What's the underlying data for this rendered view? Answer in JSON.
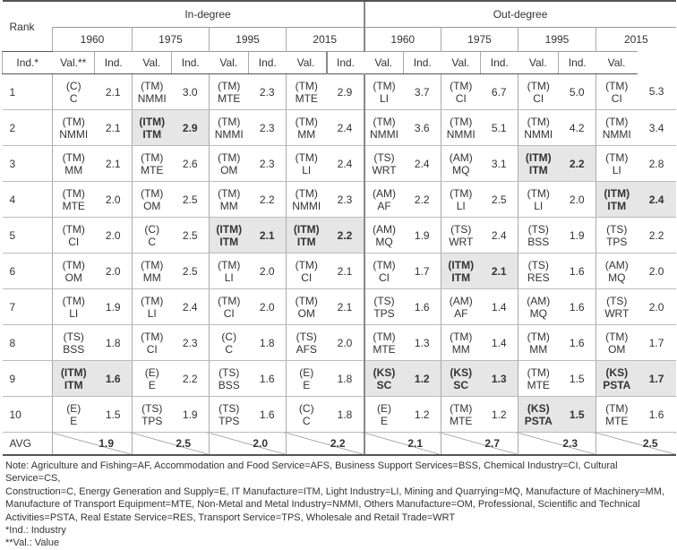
{
  "header": {
    "rank": "Rank",
    "in_degree": "In-degree",
    "out_degree": "Out-degree",
    "years": [
      "1960",
      "1975",
      "1995",
      "2015",
      "1960",
      "1975",
      "1995",
      "2015"
    ],
    "sub": [
      "Ind.*",
      "Val.**",
      "Ind.",
      "Val.",
      "Ind.",
      "Val.",
      "Ind.",
      "Val.",
      "Ind.",
      "Val.",
      "Ind.",
      "Val.",
      "Ind.",
      "Val.",
      "Ind.",
      "Val."
    ]
  },
  "rows": [
    {
      "rank": "1",
      "cells": [
        {
          "c": "(C)",
          "a": "C",
          "v": "2.1"
        },
        {
          "c": "(TM)",
          "a": "NMMI",
          "v": "3.0"
        },
        {
          "c": "(TM)",
          "a": "MTE",
          "v": "2.3"
        },
        {
          "c": "(TM)",
          "a": "MTE",
          "v": "2.9"
        },
        {
          "c": "(TM)",
          "a": "LI",
          "v": "3.7"
        },
        {
          "c": "(TM)",
          "a": "CI",
          "v": "6.7"
        },
        {
          "c": "(TM)",
          "a": "CI",
          "v": "5.0"
        },
        {
          "c": "(TM)",
          "a": "CI",
          "v": "5.3"
        }
      ]
    },
    {
      "rank": "2",
      "cells": [
        {
          "c": "(TM)",
          "a": "NMMI",
          "v": "2.1"
        },
        {
          "c": "(ITM)",
          "a": "ITM",
          "v": "2.9",
          "hl": true
        },
        {
          "c": "(TM)",
          "a": "NMMI",
          "v": "2.3"
        },
        {
          "c": "(TM)",
          "a": "MM",
          "v": "2.4"
        },
        {
          "c": "(TM)",
          "a": "NMMI",
          "v": "3.6"
        },
        {
          "c": "(TM)",
          "a": "NMMI",
          "v": "5.1"
        },
        {
          "c": "(TM)",
          "a": "NMMI",
          "v": "4.2"
        },
        {
          "c": "(TM)",
          "a": "NMMI",
          "v": "3.4"
        }
      ]
    },
    {
      "rank": "3",
      "cells": [
        {
          "c": "(TM)",
          "a": "MM",
          "v": "2.1"
        },
        {
          "c": "(TM)",
          "a": "MTE",
          "v": "2.6"
        },
        {
          "c": "(TM)",
          "a": "OM",
          "v": "2.3"
        },
        {
          "c": "(TM)",
          "a": "LI",
          "v": "2.4"
        },
        {
          "c": "(TS)",
          "a": "WRT",
          "v": "2.4"
        },
        {
          "c": "(AM)",
          "a": "MQ",
          "v": "3.1"
        },
        {
          "c": "(ITM)",
          "a": "ITM",
          "v": "2.2",
          "hl": true
        },
        {
          "c": "(TM)",
          "a": "LI",
          "v": "2.8"
        }
      ]
    },
    {
      "rank": "4",
      "cells": [
        {
          "c": "(TM)",
          "a": "MTE",
          "v": "2.0"
        },
        {
          "c": "(TM)",
          "a": "OM",
          "v": "2.5"
        },
        {
          "c": "(TM)",
          "a": "MM",
          "v": "2.2"
        },
        {
          "c": "(TM)",
          "a": "NMMI",
          "v": "2.3"
        },
        {
          "c": "(AM)",
          "a": "AF",
          "v": "2.2"
        },
        {
          "c": "(TM)",
          "a": "LI",
          "v": "2.5"
        },
        {
          "c": "(TM)",
          "a": "LI",
          "v": "2.0"
        },
        {
          "c": "(ITM)",
          "a": "ITM",
          "v": "2.4",
          "hl": true
        }
      ]
    },
    {
      "rank": "5",
      "cells": [
        {
          "c": "(TM)",
          "a": "CI",
          "v": "2.0"
        },
        {
          "c": "(C)",
          "a": "C",
          "v": "2.5"
        },
        {
          "c": "(ITM)",
          "a": "ITM",
          "v": "2.1",
          "hl": true
        },
        {
          "c": "(ITM)",
          "a": "ITM",
          "v": "2.2",
          "hl": true
        },
        {
          "c": "(AM)",
          "a": "MQ",
          "v": "1.9"
        },
        {
          "c": "(TS)",
          "a": "WRT",
          "v": "2.4"
        },
        {
          "c": "(TS)",
          "a": "BSS",
          "v": "1.9"
        },
        {
          "c": "(TS)",
          "a": "TPS",
          "v": "2.2"
        }
      ]
    },
    {
      "rank": "6",
      "cells": [
        {
          "c": "(TM)",
          "a": "OM",
          "v": "2.0"
        },
        {
          "c": "(TM)",
          "a": "MM",
          "v": "2.5"
        },
        {
          "c": "(TM)",
          "a": "LI",
          "v": "2.0"
        },
        {
          "c": "(TM)",
          "a": "CI",
          "v": "2.1"
        },
        {
          "c": "(TM)",
          "a": "CI",
          "v": "1.7"
        },
        {
          "c": "(ITM)",
          "a": "ITM",
          "v": "2.1",
          "hl": true
        },
        {
          "c": "(TS)",
          "a": "RES",
          "v": "1.6"
        },
        {
          "c": "(AM)",
          "a": "MQ",
          "v": "2.0"
        }
      ]
    },
    {
      "rank": "7",
      "cells": [
        {
          "c": "(TM)",
          "a": "LI",
          "v": "1.9"
        },
        {
          "c": "(TM)",
          "a": "LI",
          "v": "2.4"
        },
        {
          "c": "(TM)",
          "a": "CI",
          "v": "2.0"
        },
        {
          "c": "(TM)",
          "a": "OM",
          "v": "2.1"
        },
        {
          "c": "(TS)",
          "a": "TPS",
          "v": "1.6"
        },
        {
          "c": "(AM)",
          "a": "AF",
          "v": "1.4"
        },
        {
          "c": "(AM)",
          "a": "MQ",
          "v": "1.6"
        },
        {
          "c": "(TS)",
          "a": "WRT",
          "v": "2.0"
        }
      ]
    },
    {
      "rank": "8",
      "cells": [
        {
          "c": "(TS)",
          "a": "BSS",
          "v": "1.8"
        },
        {
          "c": "(TM)",
          "a": "CI",
          "v": "2.3"
        },
        {
          "c": "(C)",
          "a": "C",
          "v": "1.8"
        },
        {
          "c": "(TS)",
          "a": "AFS",
          "v": "2.0"
        },
        {
          "c": "(TM)",
          "a": "MTE",
          "v": "1.3"
        },
        {
          "c": "(TM)",
          "a": "MM",
          "v": "1.4"
        },
        {
          "c": "(TM)",
          "a": "MM",
          "v": "1.6"
        },
        {
          "c": "(TM)",
          "a": "OM",
          "v": "1.7"
        }
      ]
    },
    {
      "rank": "9",
      "cells": [
        {
          "c": "(ITM)",
          "a": "ITM",
          "v": "1.6",
          "hl": true
        },
        {
          "c": "(E)",
          "a": "E",
          "v": "2.2"
        },
        {
          "c": "(TS)",
          "a": "BSS",
          "v": "1.6"
        },
        {
          "c": "(E)",
          "a": "E",
          "v": "1.8"
        },
        {
          "c": "(KS)",
          "a": "SC",
          "v": "1.2",
          "hl": true
        },
        {
          "c": "(KS)",
          "a": "SC",
          "v": "1.3",
          "hl": true
        },
        {
          "c": "(TM)",
          "a": "MTE",
          "v": "1.5"
        },
        {
          "c": "(KS)",
          "a": "PSTA",
          "v": "1.7",
          "hl": true
        }
      ]
    },
    {
      "rank": "10",
      "cells": [
        {
          "c": "(E)",
          "a": "E",
          "v": "1.5"
        },
        {
          "c": "(TS)",
          "a": "TPS",
          "v": "1.9"
        },
        {
          "c": "(TS)",
          "a": "TPS",
          "v": "1.6"
        },
        {
          "c": "(C)",
          "a": "C",
          "v": "1.8"
        },
        {
          "c": "(E)",
          "a": "E",
          "v": "1.2"
        },
        {
          "c": "(TM)",
          "a": "MTE",
          "v": "1.2"
        },
        {
          "c": "(KS)",
          "a": "PSTA",
          "v": "1.5",
          "hl": true
        },
        {
          "c": "(TM)",
          "a": "MTE",
          "v": "1.6"
        }
      ]
    }
  ],
  "avg": {
    "label": "AVG",
    "values": [
      "1.9",
      "2.5",
      "2.0",
      "2.2",
      "2.1",
      "2.7",
      "2.3",
      "2.5"
    ]
  },
  "notes": [
    "Note: Agriculture and Fishing=AF, Accommodation and Food Service=AFS, Business Support Services=BSS, Chemical Industry=CI, Cultural Service=CS,",
    "Construction=C, Energy Generation and Supply=E, IT Manufacture=ITM, Light Industry=LI, Mining and Quarrying=MQ, Manufacture of Machinery=MM,",
    "Manufacture of Transport Equipment=MTE, Non-Metal and Metal Industry=NMMI, Others Manufacture=OM, Professional, Scientific and Technical",
    "Activities=PSTA, Real Estate Service=RES, Transport Service=TPS, Wholesale and Retail Trade=WRT",
    "*Ind.: Industry",
    "**Val.: Value"
  ]
}
